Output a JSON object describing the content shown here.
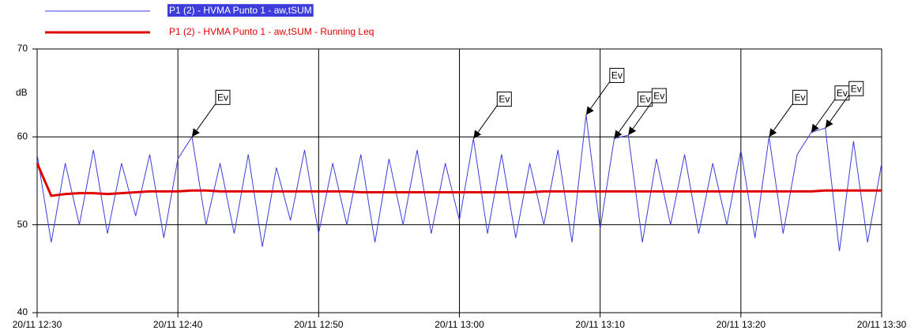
{
  "chart_data": {
    "type": "line",
    "ylabel": "dB",
    "x": [
      "20/11 12:30",
      "20/11 12:31",
      "20/11 12:32",
      "20/11 12:33",
      "20/11 12:34",
      "20/11 12:35",
      "20/11 12:36",
      "20/11 12:37",
      "20/11 12:38",
      "20/11 12:39",
      "20/11 12:40",
      "20/11 12:41",
      "20/11 12:42",
      "20/11 12:43",
      "20/11 12:44",
      "20/11 12:45",
      "20/11 12:46",
      "20/11 12:47",
      "20/11 12:48",
      "20/11 12:49",
      "20/11 12:50",
      "20/11 12:51",
      "20/11 12:52",
      "20/11 12:53",
      "20/11 12:54",
      "20/11 12:55",
      "20/11 12:56",
      "20/11 12:57",
      "20/11 12:58",
      "20/11 12:59",
      "20/11 13:00",
      "20/11 13:01",
      "20/11 13:02",
      "20/11 13:03",
      "20/11 13:04",
      "20/11 13:05",
      "20/11 13:06",
      "20/11 13:07",
      "20/11 13:08",
      "20/11 13:09",
      "20/11 13:10",
      "20/11 13:11",
      "20/11 13:12",
      "20/11 13:13",
      "20/11 13:14",
      "20/11 13:15",
      "20/11 13:16",
      "20/11 13:17",
      "20/11 13:18",
      "20/11 13:19",
      "20/11 13:20",
      "20/11 13:21",
      "20/11 13:22",
      "20/11 13:23",
      "20/11 13:24",
      "20/11 13:25",
      "20/11 13:26",
      "20/11 13:27",
      "20/11 13:28",
      "20/11 13:29",
      "20/11 13:30"
    ],
    "series": [
      {
        "name": "P1 (2) - HVMA Punto 1 - aw,tSUM",
        "color": "#3c3cdc",
        "values": [
          58,
          48,
          57,
          50,
          58.5,
          49,
          57,
          51,
          58,
          48.5,
          57.5,
          60,
          50,
          57,
          49,
          58,
          47.5,
          56.5,
          50.5,
          58.5,
          49,
          57,
          50,
          58,
          48,
          57.5,
          50,
          58.5,
          49,
          57,
          50.5,
          59.8,
          49,
          58,
          48.5,
          57,
          50,
          58.5,
          48,
          62.5,
          49.5,
          59.8,
          60.2,
          48,
          57.5,
          50,
          58,
          49,
          57,
          50,
          58.5,
          48.5,
          60,
          49,
          58,
          60.5,
          61,
          47,
          59.5,
          48,
          57
        ]
      },
      {
        "name": "P1 (2) - HVMA Punto 1 - aw,tSUM - Running Leq",
        "color": "#e00000",
        "values": [
          57,
          53.3,
          53.5,
          53.6,
          53.6,
          53.5,
          53.6,
          53.7,
          53.8,
          53.8,
          53.8,
          53.9,
          53.9,
          53.8,
          53.8,
          53.8,
          53.8,
          53.8,
          53.8,
          53.8,
          53.8,
          53.8,
          53.8,
          53.7,
          53.7,
          53.7,
          53.7,
          53.7,
          53.7,
          53.7,
          53.7,
          53.7,
          53.7,
          53.7,
          53.7,
          53.7,
          53.8,
          53.8,
          53.8,
          53.8,
          53.8,
          53.8,
          53.8,
          53.8,
          53.8,
          53.8,
          53.8,
          53.8,
          53.8,
          53.8,
          53.8,
          53.8,
          53.8,
          53.8,
          53.8,
          53.8,
          53.9,
          53.9,
          53.9,
          53.9,
          53.9
        ]
      }
    ],
    "annotations": [
      {
        "text": "Ev",
        "x": "20/11 12:41",
        "y": 60
      },
      {
        "text": "Ev",
        "x": "20/11 13:01",
        "y": 59.8
      },
      {
        "text": "Ev",
        "x": "20/11 13:09",
        "y": 62.5
      },
      {
        "text": "Ev",
        "x": "20/11 13:11",
        "y": 59.8
      },
      {
        "text": "Ev",
        "x": "20/11 13:12",
        "y": 60.2
      },
      {
        "text": "Ev",
        "x": "20/11 13:22",
        "y": 60
      },
      {
        "text": "Ev",
        "x": "20/11 13:25",
        "y": 60.5
      },
      {
        "text": "Ev",
        "x": "20/11 13:26",
        "y": 61
      }
    ],
    "xlim": [
      "20/11 12:30",
      "20/11 13:30"
    ],
    "xticks": [
      "20/11 12:30",
      "20/11 12:40",
      "20/11 12:50",
      "20/11 13:00",
      "20/11 13:10",
      "20/11 13:20",
      "20/11 13:30"
    ],
    "ylim": [
      40,
      70
    ],
    "yticks": [
      40,
      50,
      60,
      70
    ],
    "grid": true,
    "legend": "top"
  }
}
